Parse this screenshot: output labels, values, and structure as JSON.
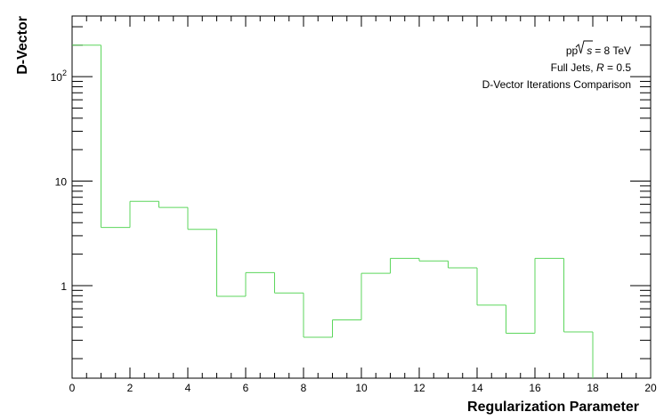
{
  "chart_data": {
    "type": "step-histogram",
    "xlabel": "Regularization Parameter",
    "ylabel": "D-Vector",
    "xlim": [
      0,
      20
    ],
    "ylim": [
      0.13,
      380
    ],
    "yscale": "log",
    "xticks": [
      "0",
      "2",
      "4",
      "6",
      "8",
      "10",
      "12",
      "14",
      "16",
      "18",
      "20"
    ],
    "yticks": [
      {
        "value": 1,
        "label": "1"
      },
      {
        "value": 10,
        "label": "10"
      },
      {
        "value": 100,
        "label": "10",
        "exponent": "2"
      }
    ],
    "annotations": {
      "line1_prefix": "pp",
      "line1_sqrt": "s",
      "line1_suffix": "= 8 TeV",
      "line2_prefix": "Full Jets, ",
      "line2_var": "R",
      "line2_suffix": " = 0.5",
      "line3": "D-Vector Iterations Comparison"
    },
    "series": [
      {
        "name": "D-Vector",
        "color": "#5cd65c",
        "bin_edges": [
          0,
          1,
          2,
          3,
          4,
          5,
          6,
          7,
          8,
          9,
          10,
          11,
          12,
          13,
          14,
          15,
          16,
          17,
          18
        ],
        "values": [
          200,
          3.6,
          6.4,
          5.6,
          3.45,
          0.79,
          1.33,
          0.85,
          0.32,
          0.47,
          1.31,
          1.82,
          1.72,
          1.48,
          0.65,
          0.35,
          1.82,
          0.36,
          0
        ]
      }
    ]
  }
}
